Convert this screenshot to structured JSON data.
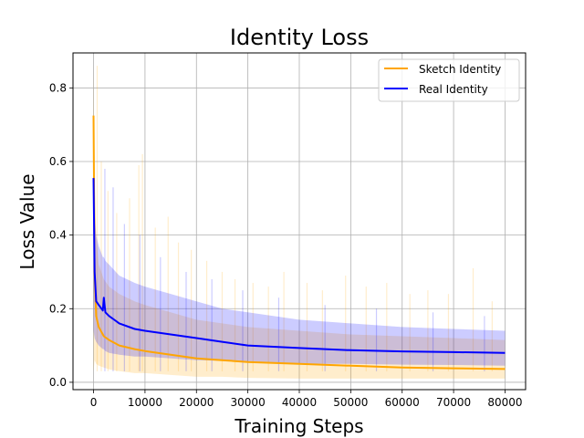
{
  "chart_data": {
    "type": "line",
    "title": "Identity Loss",
    "xlabel": "Training Steps",
    "ylabel": "Loss Value",
    "xlim": [
      -4000,
      84000
    ],
    "ylim": [
      -0.02,
      0.895
    ],
    "xticks": [
      0,
      10000,
      20000,
      30000,
      40000,
      50000,
      60000,
      70000,
      80000
    ],
    "xtick_labels": [
      "0",
      "10000",
      "20000",
      "30000",
      "40000",
      "50000",
      "60000",
      "70000",
      "80000"
    ],
    "yticks": [
      0.0,
      0.2,
      0.4,
      0.6,
      0.8
    ],
    "ytick_labels": [
      "0.0",
      "0.2",
      "0.4",
      "0.6",
      "0.8"
    ],
    "grid": true,
    "legend_position": "top-right",
    "series": [
      {
        "name": "Sketch Identity",
        "color": "#ffa500",
        "raw_alpha": 0.2,
        "x": [
          0,
          200,
          500,
          1000,
          2000,
          3000,
          5000,
          8000,
          10000,
          15000,
          20000,
          25000,
          30000,
          40000,
          50000,
          60000,
          70000,
          80000
        ],
        "smoothed": [
          0.725,
          0.3,
          0.18,
          0.15,
          0.125,
          0.115,
          0.1,
          0.09,
          0.085,
          0.075,
          0.065,
          0.06,
          0.055,
          0.05,
          0.045,
          0.04,
          0.038,
          0.036
        ],
        "band_low": [
          0.03,
          0.06,
          0.05,
          0.045,
          0.04,
          0.035,
          0.03,
          0.025,
          0.025,
          0.02,
          0.015,
          0.015,
          0.012,
          0.01,
          0.01,
          0.01,
          0.01,
          0.01
        ],
        "band_high": [
          0.86,
          0.55,
          0.4,
          0.32,
          0.28,
          0.26,
          0.24,
          0.22,
          0.21,
          0.19,
          0.17,
          0.16,
          0.15,
          0.14,
          0.13,
          0.125,
          0.12,
          0.115
        ],
        "spikes": [
          {
            "x": 700,
            "y": 0.86
          },
          {
            "x": 1500,
            "y": 0.6
          },
          {
            "x": 2800,
            "y": 0.52
          },
          {
            "x": 4500,
            "y": 0.46
          },
          {
            "x": 7000,
            "y": 0.5
          },
          {
            "x": 8800,
            "y": 0.59
          },
          {
            "x": 9500,
            "y": 0.62
          },
          {
            "x": 12000,
            "y": 0.42
          },
          {
            "x": 14500,
            "y": 0.45
          },
          {
            "x": 16500,
            "y": 0.38
          },
          {
            "x": 19000,
            "y": 0.36
          },
          {
            "x": 22000,
            "y": 0.33
          },
          {
            "x": 25000,
            "y": 0.3
          },
          {
            "x": 27500,
            "y": 0.28
          },
          {
            "x": 31000,
            "y": 0.27
          },
          {
            "x": 34000,
            "y": 0.26
          },
          {
            "x": 37000,
            "y": 0.3
          },
          {
            "x": 41500,
            "y": 0.27
          },
          {
            "x": 44500,
            "y": 0.25
          },
          {
            "x": 49000,
            "y": 0.29
          },
          {
            "x": 53000,
            "y": 0.26
          },
          {
            "x": 57000,
            "y": 0.27
          },
          {
            "x": 61500,
            "y": 0.24
          },
          {
            "x": 65000,
            "y": 0.25
          },
          {
            "x": 69000,
            "y": 0.24
          },
          {
            "x": 73800,
            "y": 0.31
          },
          {
            "x": 77500,
            "y": 0.22
          }
        ]
      },
      {
        "name": "Real Identity",
        "color": "#0000ff",
        "raw_alpha": 0.2,
        "x": [
          0,
          200,
          500,
          1000,
          1800,
          2000,
          2300,
          3000,
          5000,
          8000,
          10000,
          15000,
          20000,
          25000,
          30000,
          40000,
          50000,
          60000,
          70000,
          80000
        ],
        "smoothed": [
          0.555,
          0.3,
          0.22,
          0.21,
          0.195,
          0.23,
          0.19,
          0.18,
          0.16,
          0.145,
          0.14,
          0.13,
          0.12,
          0.11,
          0.1,
          0.093,
          0.087,
          0.084,
          0.082,
          0.08
        ],
        "band_low": [
          0.14,
          0.12,
          0.11,
          0.1,
          0.09,
          0.09,
          0.085,
          0.08,
          0.075,
          0.07,
          0.07,
          0.065,
          0.06,
          0.058,
          0.055,
          0.05,
          0.05,
          0.048,
          0.047,
          0.045
        ],
        "band_high": [
          0.56,
          0.46,
          0.4,
          0.37,
          0.34,
          0.34,
          0.33,
          0.32,
          0.29,
          0.27,
          0.26,
          0.24,
          0.22,
          0.2,
          0.19,
          0.17,
          0.16,
          0.15,
          0.145,
          0.14
        ],
        "spikes": [
          {
            "x": 2200,
            "y": 0.58
          },
          {
            "x": 3800,
            "y": 0.53
          },
          {
            "x": 6000,
            "y": 0.43
          },
          {
            "x": 9000,
            "y": 0.4
          },
          {
            "x": 13000,
            "y": 0.34
          },
          {
            "x": 18000,
            "y": 0.3
          },
          {
            "x": 23000,
            "y": 0.28
          },
          {
            "x": 29000,
            "y": 0.25
          },
          {
            "x": 36000,
            "y": 0.23
          },
          {
            "x": 45000,
            "y": 0.21
          },
          {
            "x": 55000,
            "y": 0.2
          },
          {
            "x": 66000,
            "y": 0.19
          },
          {
            "x": 76000,
            "y": 0.18
          }
        ]
      }
    ]
  }
}
